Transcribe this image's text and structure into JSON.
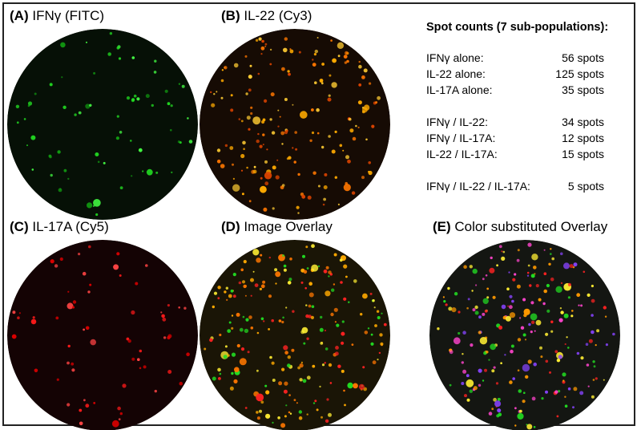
{
  "panels": [
    {
      "letter": "(A)",
      "name": "IFNγ (FITC)",
      "palette": [
        "#22dd22",
        "#44ff44",
        "#119911"
      ],
      "background": "#061006",
      "spots": 70
    },
    {
      "letter": "(B)",
      "name": "IL-22 (Cy3)",
      "palette": [
        "#ffaa00",
        "#ff7700",
        "#ffcc33",
        "#dd4400"
      ],
      "background": "#160b04",
      "spots": 180
    },
    {
      "letter": "(C)",
      "name": "IL-17A (Cy5)",
      "palette": [
        "#ff1a1a",
        "#dd0000",
        "#ff4444"
      ],
      "background": "#140304",
      "spots": 65
    },
    {
      "letter": "(D)",
      "name": "Image Overlay",
      "palette": [
        "#ffaa00",
        "#ff7700",
        "#22dd22",
        "#ff2222",
        "#ffee33"
      ],
      "background": "#1a1506",
      "spots": 230
    },
    {
      "letter": "(E)",
      "name": "Color substituted Overlay",
      "palette": [
        "#ff9900",
        "#22dd22",
        "#ff2222",
        "#8844ff",
        "#ff44cc",
        "#ffee33"
      ],
      "background": "#141612",
      "spots": 230
    }
  ],
  "counts": {
    "title": "Spot counts (7 sub-populations):",
    "groups": [
      [
        {
          "label": "IFNγ alone:",
          "value": "56 spots"
        },
        {
          "label": "IL-22 alone:",
          "value": "125 spots"
        },
        {
          "label": "IL-17A alone:",
          "value": "35 spots"
        }
      ],
      [
        {
          "label": "IFNγ / IL-22:",
          "value": "34 spots"
        },
        {
          "label": "IFNγ / IL-17A:",
          "value": "12 spots"
        },
        {
          "label": "IL-22 / IL-17A:",
          "value": "15 spots"
        }
      ],
      [
        {
          "label": "IFNγ / IL-22 / IL-17A:",
          "value": "5 spots"
        }
      ]
    ]
  }
}
